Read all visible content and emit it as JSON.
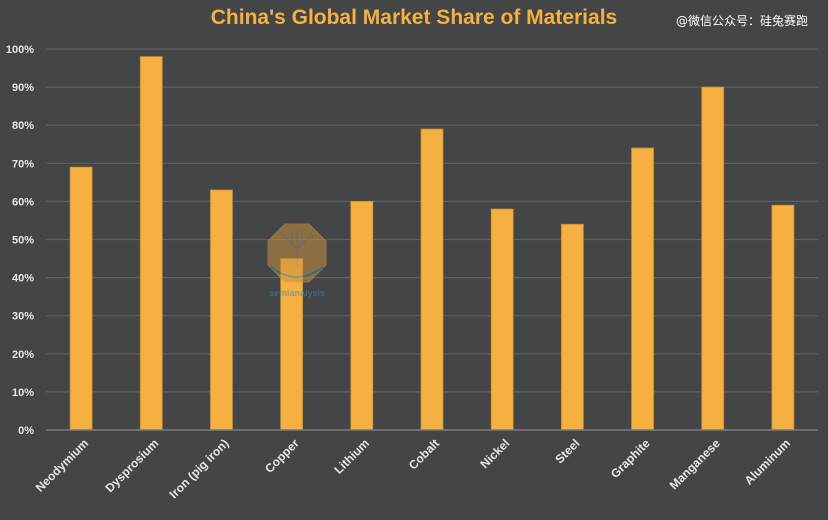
{
  "watermark": "@微信公众号：硅兔赛跑",
  "logo_text": "semianalysis",
  "colors": {
    "background": "#444546",
    "bar": "#f5b041",
    "title": "#f4b042"
  },
  "chart_data": {
    "type": "bar",
    "title": "China's Global Market Share of Materials",
    "xlabel": "",
    "ylabel": "",
    "categories": [
      "Neodymium",
      "Dysprosium",
      "Iron (pig iron)",
      "Copper",
      "Lithium",
      "Cobalt",
      "Nickel",
      "Steel",
      "Graphite",
      "Manganese",
      "Aluminum"
    ],
    "values": [
      69,
      98,
      63,
      45,
      60,
      79,
      58,
      54,
      74,
      90,
      59
    ],
    "unit": "%",
    "ylim": [
      0,
      100
    ],
    "yticks": [
      0,
      10,
      20,
      30,
      40,
      50,
      60,
      70,
      80,
      90,
      100
    ],
    "ytick_labels": [
      "0%",
      "10%",
      "20%",
      "30%",
      "40%",
      "50%",
      "60%",
      "70%",
      "80%",
      "90%",
      "100%"
    ],
    "grid": true,
    "legend": "none"
  }
}
